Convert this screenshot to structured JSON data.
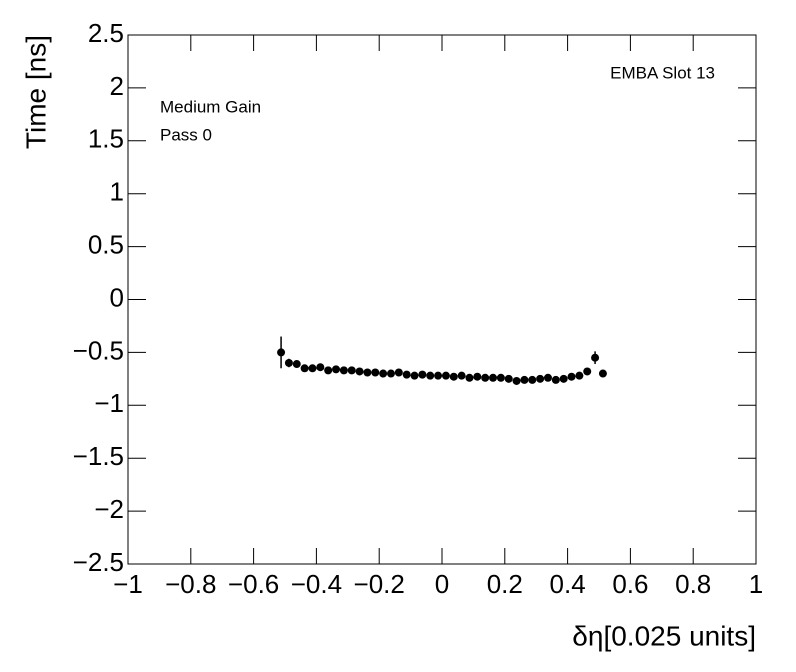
{
  "chart_data": {
    "type": "scatter",
    "xlabel": "δη[0.025 units]",
    "ylabel": "Time [ns]",
    "annotations": [
      "EMBA Slot 13",
      "Medium Gain",
      "Pass 0"
    ],
    "color": "#000000",
    "x": [
      -0.5125,
      -0.4875,
      -0.4625,
      -0.4375,
      -0.4125,
      -0.3875,
      -0.3625,
      -0.3375,
      -0.3125,
      -0.2875,
      -0.2625,
      -0.2375,
      -0.2125,
      -0.1875,
      -0.1625,
      -0.1375,
      -0.1125,
      -0.0875,
      -0.0625,
      -0.0375,
      -0.0125,
      0.0125,
      0.0375,
      0.0625,
      0.0875,
      0.1125,
      0.1375,
      0.1625,
      0.1875,
      0.2125,
      0.2375,
      0.2625,
      0.2875,
      0.3125,
      0.3375,
      0.3625,
      0.3875,
      0.4125,
      0.4375,
      0.4625,
      0.4875,
      0.5125
    ],
    "values": [
      -0.5,
      -0.6,
      -0.61,
      -0.65,
      -0.65,
      -0.64,
      -0.67,
      -0.66,
      -0.67,
      -0.67,
      -0.68,
      -0.69,
      -0.69,
      -0.7,
      -0.7,
      -0.69,
      -0.71,
      -0.72,
      -0.71,
      -0.72,
      -0.72,
      -0.72,
      -0.73,
      -0.72,
      -0.74,
      -0.73,
      -0.74,
      -0.74,
      -0.74,
      -0.75,
      -0.77,
      -0.76,
      -0.76,
      -0.75,
      -0.74,
      -0.76,
      -0.75,
      -0.73,
      -0.72,
      -0.68,
      -0.55,
      -0.7
    ],
    "errors": [
      0.15,
      0.04,
      0.02,
      0.02,
      0.02,
      0.02,
      0.02,
      0.02,
      0.02,
      0.02,
      0.02,
      0.02,
      0.02,
      0.02,
      0.02,
      0.02,
      0.02,
      0.02,
      0.02,
      0.02,
      0.02,
      0.02,
      0.02,
      0.02,
      0.02,
      0.02,
      0.02,
      0.02,
      0.02,
      0.02,
      0.02,
      0.02,
      0.02,
      0.02,
      0.02,
      0.02,
      0.02,
      0.02,
      0.02,
      0.03,
      0.06,
      0.02
    ],
    "xlim": [
      -1,
      1
    ],
    "xticks": [
      {
        "value": -1,
        "label": "−1"
      },
      {
        "value": -0.8,
        "label": "−0.8"
      },
      {
        "value": -0.6,
        "label": "−0.6"
      },
      {
        "value": -0.4,
        "label": "−0.4"
      },
      {
        "value": -0.2,
        "label": "−0.2"
      },
      0,
      0.2,
      0.4,
      0.6,
      0.8,
      1
    ],
    "ylim": [
      -2.5,
      2.5
    ],
    "yticks": [
      {
        "value": -2.5,
        "label": "−2.5"
      },
      {
        "value": -2,
        "label": "−2"
      },
      {
        "value": -1.5,
        "label": "−1.5"
      },
      {
        "value": -1,
        "label": "−1"
      },
      {
        "value": -0.5,
        "label": "−0.5"
      },
      0,
      0.5,
      1,
      1.5,
      2,
      2.5
    ]
  }
}
